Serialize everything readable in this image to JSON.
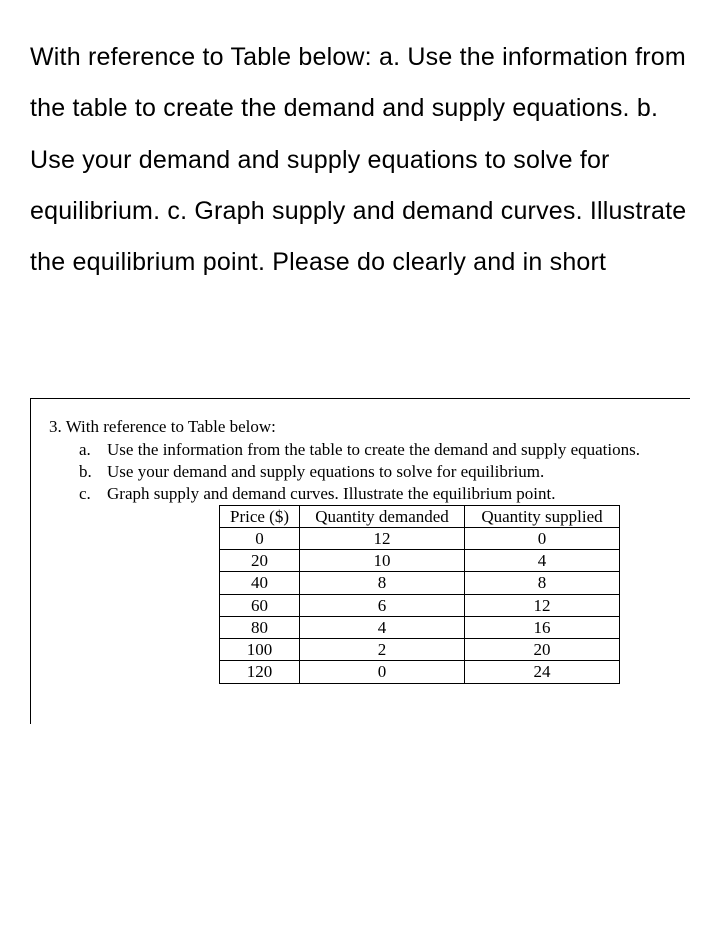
{
  "question": {
    "text": "With reference to Table below: a.  Use the information from the table to create the demand and supply equations. b.  Use your demand and supply equations to solve for equilibrium. c.  Graph supply and demand curves. Illustrate the equilibrium point. Please do clearly and in short"
  },
  "problem": {
    "intro": "3. With reference to Table below:",
    "items": [
      {
        "marker": "a.",
        "text": "Use the information from the table to create the demand and supply equations."
      },
      {
        "marker": "b.",
        "text": "Use your demand and supply equations to solve for equilibrium."
      },
      {
        "marker": "c.",
        "text": "Graph supply and demand curves. Illustrate the equilibrium point."
      }
    ]
  },
  "table": {
    "columns": [
      "Price ($)",
      "Quantity demanded",
      "Quantity supplied"
    ],
    "rows": [
      [
        "0",
        "12",
        "0"
      ],
      [
        "20",
        "10",
        "4"
      ],
      [
        "40",
        "8",
        "8"
      ],
      [
        "60",
        "6",
        "12"
      ],
      [
        "80",
        "4",
        "16"
      ],
      [
        "100",
        "2",
        "20"
      ],
      [
        "120",
        "0",
        "24"
      ]
    ]
  }
}
